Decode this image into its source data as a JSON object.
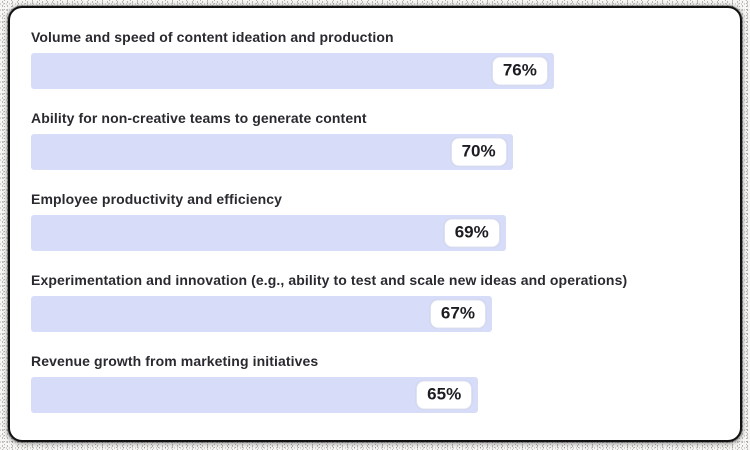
{
  "chart_data": {
    "type": "bar",
    "orientation": "horizontal",
    "title": "",
    "categories": [
      "Volume and speed of content ideation and production",
      "Ability for non-creative teams to generate content",
      "Employee productivity and efficiency",
      "Experimentation and innovation (e.g., ability to test and scale new ideas and operations)",
      "Revenue growth from marketing initiatives"
    ],
    "values": [
      76,
      70,
      69,
      67,
      65
    ],
    "value_labels": [
      "76%",
      "70%",
      "69%",
      "67%",
      "65%"
    ],
    "value_suffix": "%",
    "xlim": [
      0,
      100
    ],
    "grid": false,
    "legend": false,
    "axes_visible": false,
    "bar_color": "#d7ddf9",
    "value_pill_background": "#ffffff",
    "value_pill_border": "#dfe2f0",
    "label_color": "#2a2930",
    "value_color": "#1d1c22",
    "card_border_color": "#111111",
    "card_background": "#ffffff"
  }
}
